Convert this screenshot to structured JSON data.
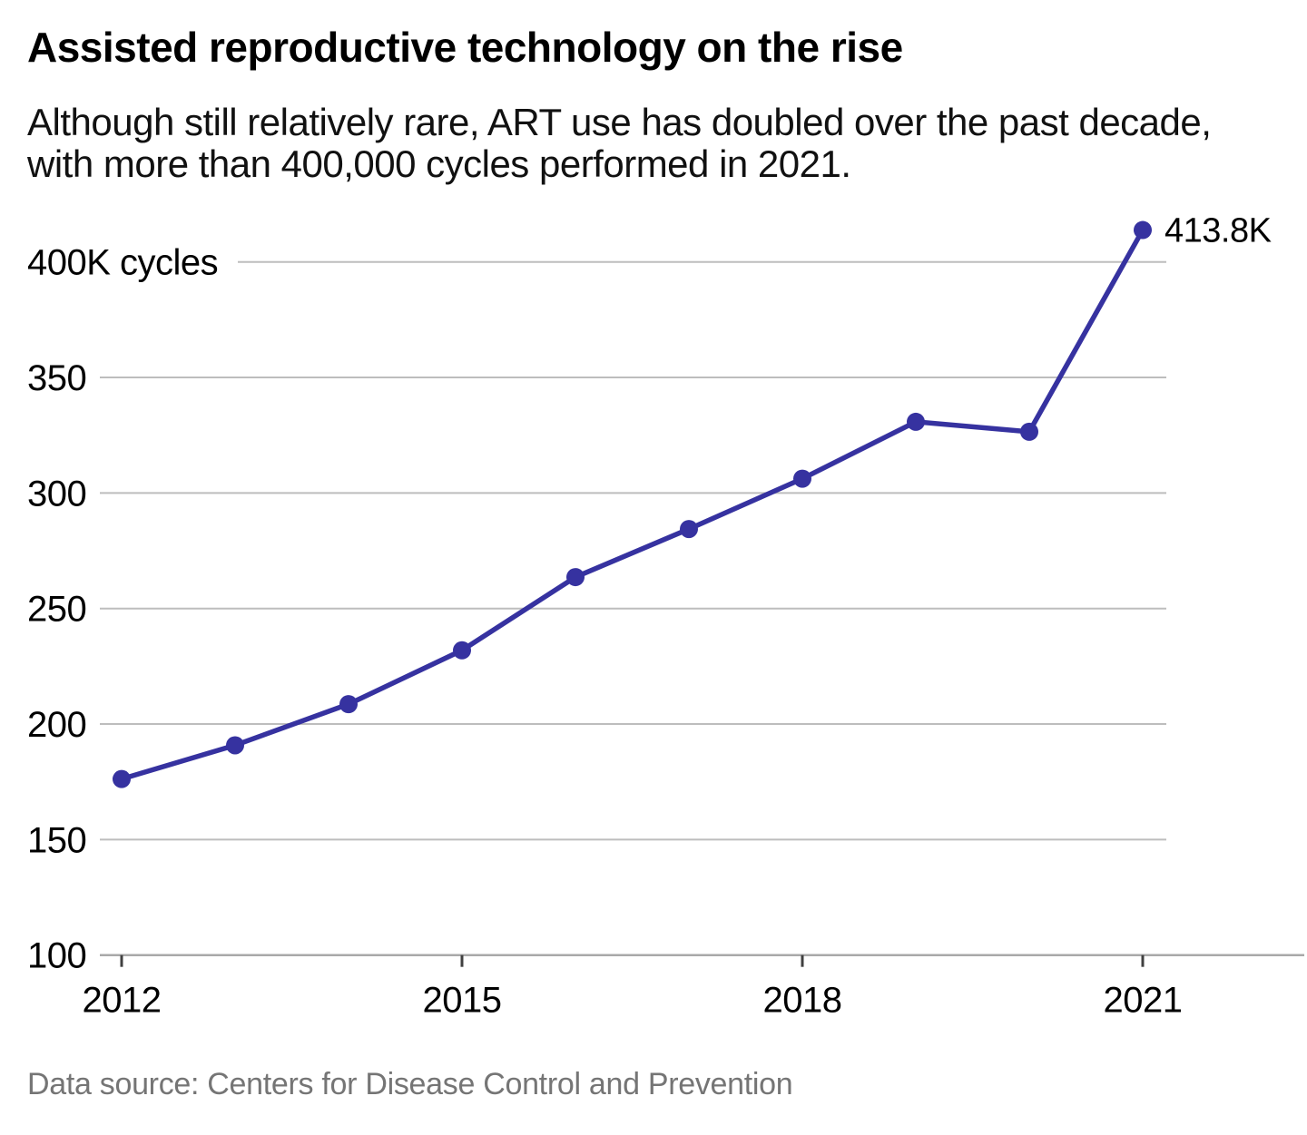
{
  "chart_data": {
    "type": "line",
    "title": "Assisted reproductive technology on the rise",
    "subtitle": "Although still relatively rare, ART use has doubled over the past decade, with more than 400,000 cycles performed in 2021.",
    "source": "Data source: Centers for Disease Control and Prevention",
    "unit": "thousands of ART cycles per year",
    "x": [
      2012,
      2013,
      2014,
      2015,
      2016,
      2017,
      2018,
      2019,
      2020,
      2021
    ],
    "values": [
      176.2,
      190.8,
      208.6,
      231.9,
      263.6,
      284.4,
      306.2,
      330.8,
      326.5,
      413.8
    ],
    "end_label": "413.8K",
    "x_ticks": [
      2012,
      2015,
      2018,
      2021
    ],
    "y_ticks": [
      {
        "value": 100,
        "label": "100"
      },
      {
        "value": 150,
        "label": "150"
      },
      {
        "value": 200,
        "label": "200"
      },
      {
        "value": 250,
        "label": "250"
      },
      {
        "value": 300,
        "label": "300"
      },
      {
        "value": 350,
        "label": "350"
      },
      {
        "value": 400,
        "label": "400K cycles"
      }
    ],
    "xlim": [
      2012,
      2021
    ],
    "ylim": [
      100,
      420
    ],
    "grid": true,
    "legend": "none",
    "line_color": "#3632a0",
    "grid_color": "#bdbdbd",
    "axis_color": "#a9a9a9",
    "tick_color": "#404040",
    "text_color": "#000000",
    "source_color": "#757575"
  }
}
